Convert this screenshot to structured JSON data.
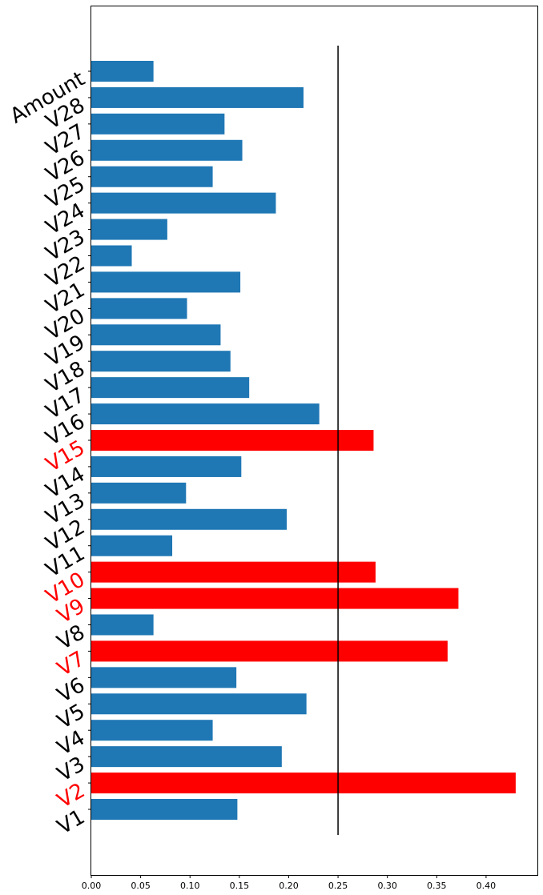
{
  "chart_data": {
    "type": "bar",
    "orientation": "horizontal",
    "categories": [
      "V1",
      "V2",
      "V3",
      "V4",
      "V5",
      "V6",
      "V7",
      "V8",
      "V9",
      "V10",
      "V11",
      "V12",
      "V13",
      "V14",
      "V15",
      "V16",
      "V17",
      "V18",
      "V19",
      "V20",
      "V21",
      "V22",
      "V23",
      "V24",
      "V25",
      "V26",
      "V27",
      "V28",
      "Amount"
    ],
    "values": [
      0.148,
      0.43,
      0.193,
      0.123,
      0.218,
      0.147,
      0.361,
      0.063,
      0.372,
      0.288,
      0.082,
      0.198,
      0.096,
      0.152,
      0.286,
      0.231,
      0.16,
      0.141,
      0.131,
      0.097,
      0.151,
      0.041,
      0.077,
      0.187,
      0.123,
      0.153,
      0.135,
      0.215,
      0.063
    ],
    "highlighted": [
      "V2",
      "V7",
      "V9",
      "V10",
      "V15"
    ],
    "threshold": 0.25,
    "xlim": [
      0,
      0.452
    ],
    "xticks": [
      "0.00",
      "0.05",
      "0.10",
      "0.15",
      "0.20",
      "0.25",
      "0.30",
      "0.35",
      "0.40"
    ],
    "title": "",
    "xlabel": "",
    "ylabel": "",
    "grid": false,
    "colors": {
      "normal": "#1f77b4",
      "highlight": "#ff0000",
      "threshold_line": "#000000"
    }
  }
}
